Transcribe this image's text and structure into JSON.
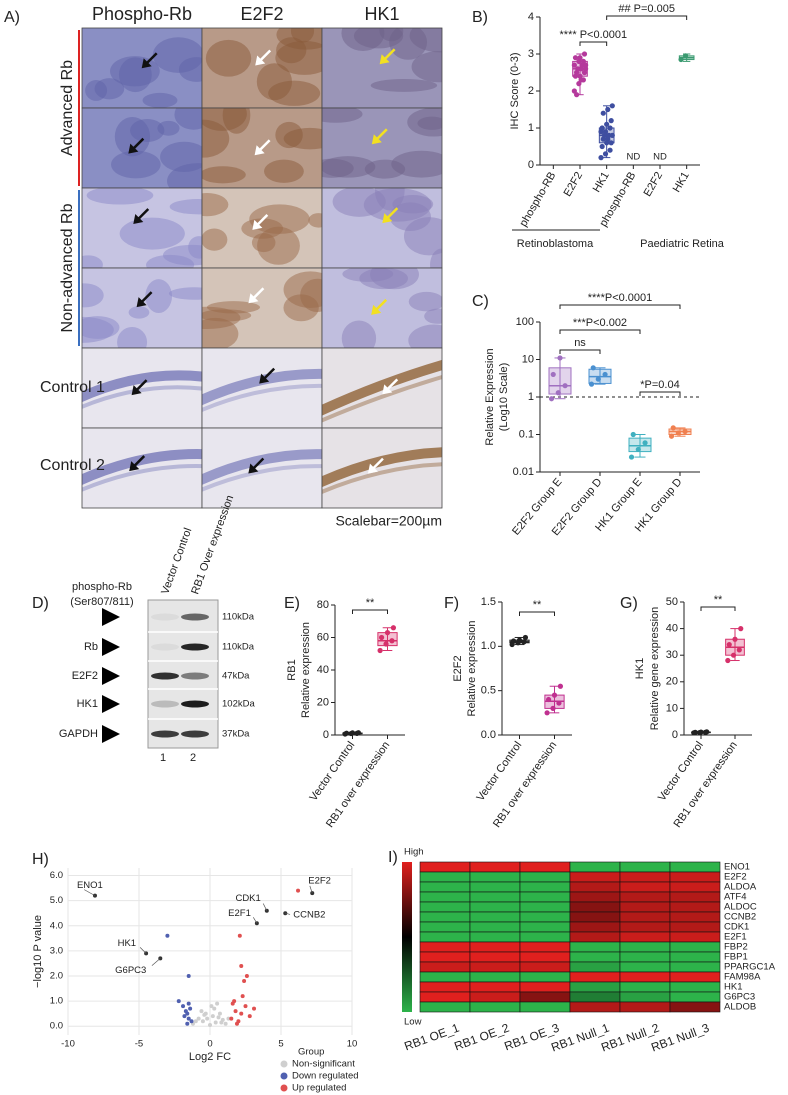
{
  "figure_a": {
    "panel": "A)",
    "columns": [
      "Phospho-Rb",
      "E2F2",
      "HK1"
    ],
    "row_groups": [
      "Advanced Rb",
      "Non-advanced Rb",
      "Control 1",
      "Control 2"
    ],
    "scalebar": "Scalebar=200µm"
  },
  "western_blot": {
    "panel": "D)",
    "lanes": [
      "Vector Control",
      "RB1 Over expression"
    ],
    "lane_numbers": [
      "1",
      "2"
    ],
    "rows": [
      {
        "label": [
          "phospho-Rb",
          "(Ser807/811)"
        ],
        "size": "110kDa"
      },
      {
        "label": [
          "Rb"
        ],
        "size": "110kDa"
      },
      {
        "label": [
          "E2F2"
        ],
        "size": "47kDa"
      },
      {
        "label": [
          "HK1"
        ],
        "size": "102kDa"
      },
      {
        "label": [
          "GAPDH"
        ],
        "size": "37kDa"
      }
    ]
  },
  "chart_data": [
    {
      "type": "box",
      "panel": "B)",
      "ylabel": [
        "IHC Score (0-3)"
      ],
      "categories": [
        "phospho-RB",
        "E2F2",
        "HK1",
        "phospho-RB",
        "E2F2",
        "HK1"
      ],
      "groups": [
        "Retinoblastoma",
        "Paediatric Retina"
      ],
      "ylim": [
        0,
        4
      ],
      "yticks": [
        0,
        1,
        2,
        3,
        4
      ],
      "boxes": [
        null,
        {
          "color": "#b5399c",
          "min": 1.9,
          "q1": 2.4,
          "median": 2.6,
          "q3": 2.8,
          "max": 3.0,
          "points": [
            2.0,
            2.2,
            2.3,
            2.4,
            2.4,
            2.5,
            2.5,
            2.6,
            2.6,
            2.6,
            2.7,
            2.7,
            2.8,
            2.8,
            2.9,
            2.9,
            3.0,
            1.9,
            2.3,
            2.7
          ]
        },
        {
          "color": "#3e4ea0",
          "min": 0.2,
          "q1": 0.6,
          "median": 0.8,
          "q3": 1.0,
          "max": 1.6,
          "points": [
            0.2,
            0.3,
            0.4,
            0.5,
            0.6,
            0.6,
            0.7,
            0.7,
            0.8,
            0.8,
            0.8,
            0.9,
            0.9,
            1.0,
            1.0,
            1.1,
            1.2,
            1.4,
            1.5,
            1.6
          ]
        },
        null,
        null,
        {
          "color": "#3a9a70",
          "min": 2.8,
          "q1": 2.85,
          "median": 2.9,
          "q3": 2.95,
          "max": 3.0,
          "points": [
            2.85,
            2.95
          ]
        }
      ],
      "annotations": [
        "**** P<0.0001",
        "## P=0.005",
        "ND",
        "ND"
      ]
    },
    {
      "type": "box",
      "panel": "C)",
      "ylabel": [
        "Relative Expression",
        "(Log10 Scale)"
      ],
      "categories": [
        "E2F2 Group E",
        "E2F2 Group D",
        "HK1 Group E",
        "HK1 Group D"
      ],
      "log": true,
      "ylim": [
        0.01,
        100
      ],
      "yticks": [
        0.01,
        0.1,
        1,
        10,
        100
      ],
      "reference_line": 1,
      "boxes": [
        {
          "color": "#a070c0",
          "min": 0.9,
          "q1": 1.2,
          "median": 2,
          "q3": 6,
          "max": 11,
          "points": [
            0.9,
            1.3,
            2,
            4,
            11
          ]
        },
        {
          "color": "#4a90d0",
          "min": 2.2,
          "q1": 2.3,
          "median": 3.5,
          "q3": 5.5,
          "max": 6,
          "points": [
            2.2,
            3,
            4,
            6
          ]
        },
        {
          "color": "#40b0c0",
          "min": 0.025,
          "q1": 0.035,
          "median": 0.05,
          "q3": 0.08,
          "max": 0.1,
          "points": [
            0.025,
            0.04,
            0.06,
            0.1
          ]
        },
        {
          "color": "#f08050",
          "min": 0.09,
          "q1": 0.1,
          "median": 0.12,
          "q3": 0.14,
          "max": 0.15,
          "points": [
            0.09,
            0.11,
            0.12,
            0.15
          ]
        }
      ],
      "annotations": [
        "ns",
        "***P<0.002",
        "****P<0.0001",
        "*P=0.04"
      ]
    },
    {
      "type": "box",
      "panel": "E)",
      "ylabel": [
        "RB1",
        "Relative expression"
      ],
      "categories": [
        "Vector Control",
        "RB1 over expression"
      ],
      "ylim": [
        0,
        80
      ],
      "yticks": [
        0,
        20,
        40,
        60,
        80
      ],
      "boxes": [
        {
          "color": "#222222",
          "min": 0.5,
          "q1": 0.8,
          "median": 1,
          "q3": 1.2,
          "max": 1.5,
          "points": [
            0.6,
            0.9,
            1,
            1.1,
            1.3,
            1.4
          ]
        },
        {
          "color": "#d6306a",
          "min": 52,
          "q1": 55,
          "median": 58,
          "q3": 63,
          "max": 66,
          "points": [
            52,
            56,
            58,
            60,
            63,
            66
          ]
        }
      ],
      "annotations": [
        "**"
      ]
    },
    {
      "type": "box",
      "panel": "F)",
      "ylabel": [
        "E2F2",
        "Relative expression"
      ],
      "categories": [
        "Vector Control",
        "RB1 over expression"
      ],
      "ylim": [
        0,
        1.5
      ],
      "yticks": [
        {
          "value": 0,
          "label": "0.0"
        },
        0.5,
        {
          "value": 1,
          "label": "1.0"
        },
        1.5
      ],
      "boxes": [
        {
          "color": "#222222",
          "min": 1.02,
          "q1": 1.04,
          "median": 1.05,
          "q3": 1.07,
          "max": 1.1,
          "points": [
            1.02,
            1.04,
            1.05,
            1.06,
            1.07,
            1.1
          ]
        },
        {
          "color": "#c03090",
          "min": 0.25,
          "q1": 0.3,
          "median": 0.38,
          "q3": 0.45,
          "max": 0.55,
          "points": [
            0.25,
            0.3,
            0.36,
            0.4,
            0.45,
            0.55
          ]
        }
      ],
      "annotations": [
        "**"
      ]
    },
    {
      "type": "box",
      "panel": "G)",
      "ylabel": [
        "HK1",
        "Relative gene expression"
      ],
      "categories": [
        "Vector Control",
        "RB1 over expression"
      ],
      "ylim": [
        0,
        50
      ],
      "yticks": [
        0,
        10,
        20,
        30,
        40,
        50
      ],
      "boxes": [
        {
          "color": "#222222",
          "min": 0.8,
          "q1": 0.9,
          "median": 1,
          "q3": 1.1,
          "max": 1.2,
          "points": [
            0.8,
            0.9,
            1,
            1,
            1.1,
            1.2
          ]
        },
        {
          "color": "#d6306a",
          "min": 28,
          "q1": 30,
          "median": 33,
          "q3": 36,
          "max": 40,
          "points": [
            28,
            30,
            32,
            34,
            36,
            40
          ]
        }
      ],
      "annotations": [
        "**"
      ]
    },
    {
      "type": "scatter",
      "panel": "H)",
      "xlabel": "Log2 FC",
      "ylabel": "−log10 P value",
      "grid": true,
      "xlim": [
        -10,
        10
      ],
      "xticks": [
        -10,
        -5,
        0,
        5,
        10
      ],
      "ylim": [
        -0.35,
        6.3
      ],
      "yticks": [
        {
          "value": 0,
          "label": "0.0"
        },
        {
          "value": 1,
          "label": "1.0"
        },
        {
          "value": 2,
          "label": "2.0"
        },
        {
          "value": 3,
          "label": "3.0"
        },
        {
          "value": 4,
          "label": "4.0"
        },
        {
          "value": 5,
          "label": "5.0"
        },
        {
          "value": 6,
          "label": "6.0"
        }
      ],
      "legend_title": "Group",
      "series": [
        {
          "name": "Non-significant",
          "color": "#cfcfcf",
          "x": [
            -1.2,
            -0.8,
            -0.5,
            -0.3,
            0,
            0.2,
            0.4,
            0.6,
            0.9,
            1.1,
            -0.6,
            0.3,
            -0.2,
            0.7,
            -1,
            0.1,
            0.5,
            -0.4,
            0.8,
            1.3
          ],
          "values": [
            0.1,
            0.3,
            0.2,
            0.5,
            0.05,
            0.4,
            0.15,
            0.35,
            0.25,
            0.1,
            0.6,
            0.7,
            0.3,
            0.5,
            0.2,
            0.8,
            0.9,
            0.45,
            0.15,
            0.3
          ]
        },
        {
          "name": "Down regulated",
          "color": "#5060b0",
          "x": [
            -1.5,
            -1.6,
            -1.4,
            -1.8,
            -1.5,
            -1.7,
            -1.3,
            -2.2,
            -1.6,
            -3.0,
            -1.5,
            -1.9
          ],
          "values": [
            0.3,
            0.5,
            0.7,
            0.4,
            0.9,
            0.6,
            0.2,
            1.0,
            0.1,
            3.6,
            2.0,
            0.8
          ]
        },
        {
          "name": "Up regulated",
          "color": "#e05050",
          "x": [
            1.5,
            1.8,
            2.2,
            2.5,
            1.6,
            2.0,
            2.8,
            1.7,
            2.3,
            3.1,
            2.6,
            2.2,
            2.4,
            6.2,
            2.1,
            1.9
          ],
          "values": [
            0.3,
            0.6,
            0.5,
            0.8,
            0.9,
            0.2,
            0.4,
            1.0,
            1.2,
            0.7,
            2.0,
            2.4,
            1.8,
            5.4,
            3.6,
            0.1
          ]
        }
      ],
      "labels": [
        {
          "text": "ENO1",
          "x": -8.1,
          "y": 5.2
        },
        {
          "text": "E2F2",
          "x": 7.2,
          "y": 5.3
        },
        {
          "text": "CDK1",
          "x": 4.0,
          "y": 4.6
        },
        {
          "text": "CCNB2",
          "x": 5.3,
          "y": 4.5
        },
        {
          "text": "E2F1",
          "x": 3.3,
          "y": 4.1
        },
        {
          "text": "HK1",
          "x": -4.5,
          "y": 2.9
        },
        {
          "text": "G6PC3",
          "x": -3.5,
          "y": 2.7
        }
      ]
    },
    {
      "type": "heatmap",
      "panel": "I)",
      "legend_high": "High",
      "legend_low": "Low",
      "colors": [
        "#2db34a",
        "#000000",
        "#e0201e"
      ],
      "vlim": [
        -1,
        1
      ],
      "columns": [
        "RB1 OE_1",
        "RB1 OE_2",
        "RB1 OE_3",
        "RB1 Null_1",
        "RB1 Null_2",
        "RB1 Null_3"
      ],
      "rows": [
        "ENO1",
        "E2F2",
        "ALDOA",
        "ATF4",
        "ALDOC",
        "CCNB2",
        "CDK1",
        "E2F1",
        "FBP2",
        "FBP1",
        "PPARGC1A",
        "FAM98A",
        "HK1",
        "G6PC3",
        "ALDOB"
      ],
      "values": [
        [
          1,
          1,
          1,
          -1,
          -1,
          -1
        ],
        [
          -1,
          -1,
          -1,
          0.9,
          0.9,
          0.9
        ],
        [
          -1,
          -1,
          -1,
          0.8,
          0.9,
          0.9
        ],
        [
          -1,
          -1,
          -1,
          0.7,
          0.8,
          0.8
        ],
        [
          -1,
          -1,
          -1,
          0.6,
          0.8,
          0.8
        ],
        [
          -1,
          -1,
          -1,
          0.6,
          0.8,
          0.8
        ],
        [
          -1,
          -1,
          -1,
          0.7,
          0.8,
          0.8
        ],
        [
          -1,
          -1,
          -1,
          0.8,
          0.9,
          0.9
        ],
        [
          1,
          1,
          1,
          -1,
          -1,
          -1
        ],
        [
          1,
          1,
          1,
          -1,
          -1,
          -1
        ],
        [
          0.9,
          0.9,
          0.9,
          -0.9,
          -1,
          -1
        ],
        [
          -1,
          -1,
          -1,
          1,
          1,
          1
        ],
        [
          1,
          1,
          1,
          -0.9,
          -1,
          -1
        ],
        [
          1,
          0.9,
          0.6,
          -0.7,
          -0.9,
          -1
        ],
        [
          -1,
          -1,
          -1,
          0.8,
          0.8,
          0.6
        ]
      ]
    }
  ]
}
